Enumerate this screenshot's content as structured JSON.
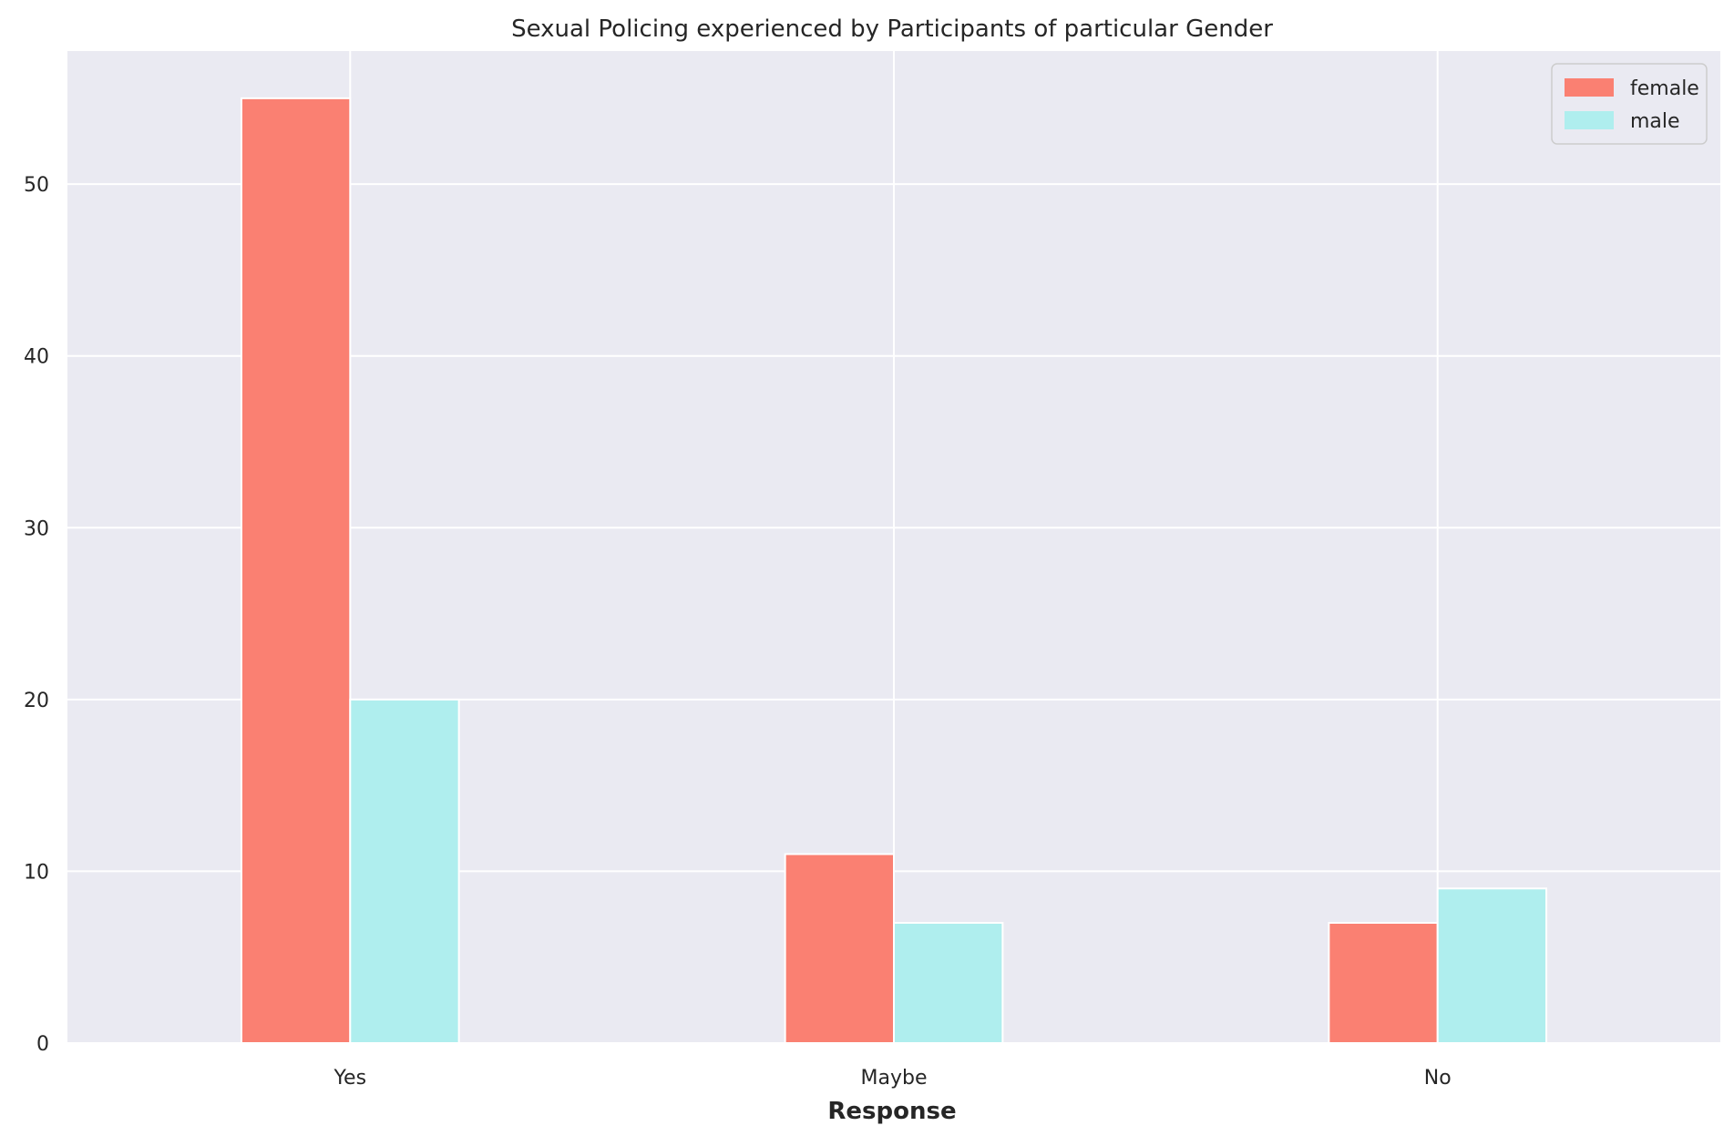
{
  "chart_data": {
    "type": "bar",
    "title": "Sexual Policing experienced by Participants of particular Gender",
    "xlabel": "Response",
    "ylabel": "",
    "categories": [
      "Yes",
      "Maybe",
      "No"
    ],
    "series": [
      {
        "name": "female",
        "color": "#fa8072",
        "values": [
          55,
          11,
          7
        ]
      },
      {
        "name": "male",
        "color": "#afeeee",
        "values": [
          20,
          7,
          9
        ]
      }
    ],
    "ylim": [
      0,
      57.75
    ],
    "yticks": [
      0,
      10,
      20,
      30,
      40,
      50
    ],
    "grid": true,
    "legend_position": "top-right",
    "background": "#eaeaf2"
  }
}
